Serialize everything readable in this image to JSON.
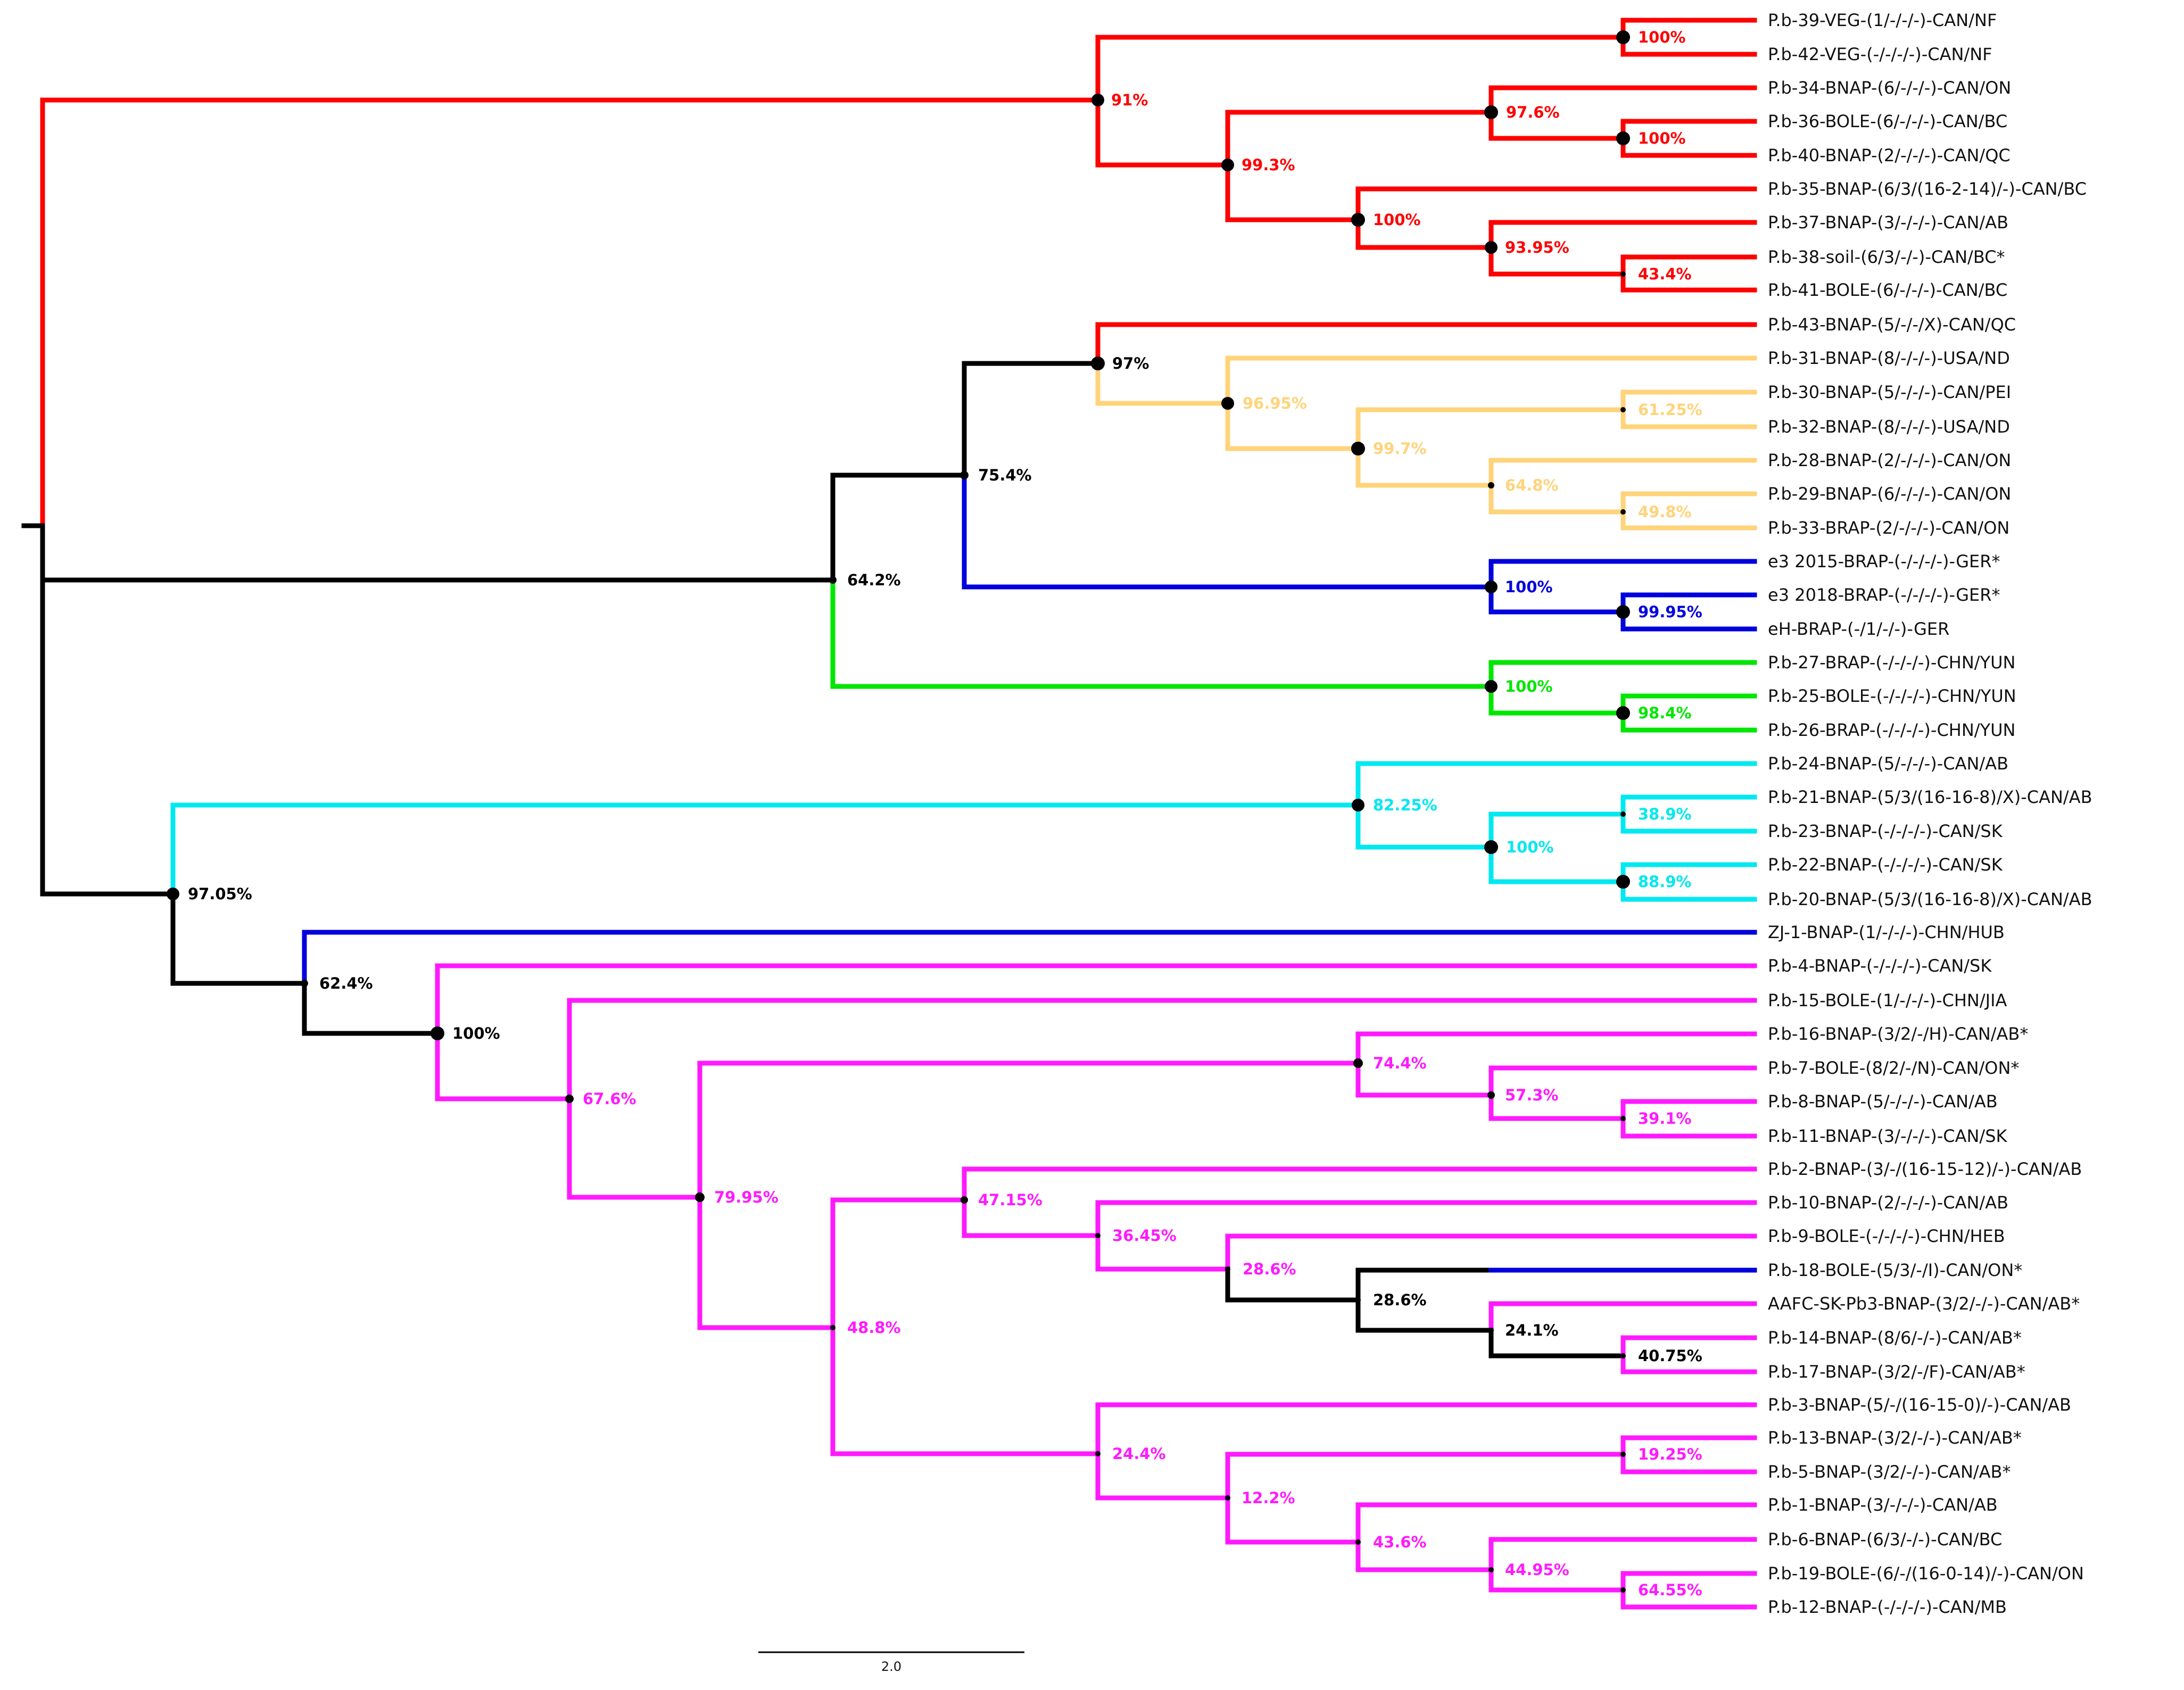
{
  "colors": {
    "red": "#ff0000",
    "black": "#000000",
    "yellow": "#ffd37a",
    "blue": "#0000dd",
    "green": "#00e600",
    "cyan": "#00e8f0",
    "magenta": "#ff1aff"
  },
  "leaves": [
    "P.b-39-VEG-(1/-/-/-)-CAN/NF",
    "P.b-42-VEG-(-/-/-/-)-CAN/NF",
    "P.b-34-BNAP-(6/-/-/-)-CAN/ON",
    "P.b-36-BOLE-(6/-/-/-)-CAN/BC",
    "P.b-40-BNAP-(2/-/-/-)-CAN/QC",
    "P.b-35-BNAP-(6/3/(16-2-14)/-)-CAN/BC",
    "P.b-37-BNAP-(3/-/-/-)-CAN/AB",
    "P.b-38-soil-(6/3/-/-)-CAN/BC*",
    "P.b-41-BOLE-(6/-/-/-)-CAN/BC",
    "P.b-43-BNAP-(5/-/-/X)-CAN/QC",
    "P.b-31-BNAP-(8/-/-/-)-USA/ND",
    "P.b-30-BNAP-(5/-/-/-)-CAN/PEI",
    "P.b-32-BNAP-(8/-/-/-)-USA/ND",
    "P.b-28-BNAP-(2/-/-/-)-CAN/ON",
    "P.b-29-BNAP-(6/-/-/-)-CAN/ON",
    "P.b-33-BRAP-(2/-/-/-)-CAN/ON",
    "e3 2015-BRAP-(-/-/-/-)-GER*",
    "e3 2018-BRAP-(-/-/-/-)-GER*",
    "eH-BRAP-(-/1/-/-)-GER",
    "P.b-27-BRAP-(-/-/-/-)-CHN/YUN",
    "P.b-25-BOLE-(-/-/-/-)-CHN/YUN",
    "P.b-26-BRAP-(-/-/-/-)-CHN/YUN",
    "P.b-24-BNAP-(5/-/-/-)-CAN/AB",
    "P.b-21-BNAP-(5/3/(16-16-8)/X)-CAN/AB",
    "P.b-23-BNAP-(-/-/-/-)-CAN/SK",
    "P.b-22-BNAP-(-/-/-/-)-CAN/SK",
    "P.b-20-BNAP-(5/3/(16-16-8)/X)-CAN/AB",
    "ZJ-1-BNAP-(1/-/-/-)-CHN/HUB",
    "P.b-4-BNAP-(-/-/-/-)-CAN/SK",
    "P.b-15-BOLE-(1/-/-/-)-CHN/JIA",
    "P.b-16-BNAP-(3/2/-/H)-CAN/AB*",
    "P.b-7-BOLE-(8/2/-/N)-CAN/ON*",
    "P.b-8-BNAP-(5/-/-/-)-CAN/AB",
    "P.b-11-BNAP-(3/-/-/-)-CAN/SK",
    "P.b-2-BNAP-(3/-/(16-15-12)/-)-CAN/AB",
    "P.b-10-BNAP-(2/-/-/-)-CAN/AB",
    "P.b-9-BOLE-(-/-/-/-)-CHN/HEB",
    "P.b-18-BOLE-(5/3/-/I)-CAN/ON*",
    "AAFC-SK-Pb3-BNAP-(3/2/-/-)-CAN/AB*",
    "P.b-14-BNAP-(8/6/-/-)-CAN/AB*",
    "P.b-17-BNAP-(3/2/-/F)-CAN/AB*",
    "P.b-3-BNAP-(5/-/(16-15-0)/-)-CAN/AB",
    "P.b-13-BNAP-(3/2/-/-)-CAN/AB*",
    "P.b-5-BNAP-(3/2/-/-)-CAN/AB*",
    "P.b-1-BNAP-(3/-/-/-)-CAN/AB",
    "P.b-6-BNAP-(6/3/-/-)-CAN/BC",
    "P.b-19-BOLE-(6/-/(16-0-14)/-)-CAN/ON",
    "P.b-12-BNAP-(-/-/-/-)-CAN/MB"
  ],
  "supports": [
    {
      "value": "100%",
      "color": "red"
    },
    {
      "value": "97.6%",
      "color": "red"
    },
    {
      "value": "100%",
      "color": "red"
    },
    {
      "value": "91%",
      "color": "red"
    },
    {
      "value": "99.3%",
      "color": "red"
    },
    {
      "value": "100%",
      "color": "red"
    },
    {
      "value": "93.95%",
      "color": "red"
    },
    {
      "value": "43.4%",
      "color": "red"
    },
    {
      "value": "97%",
      "color": "black"
    },
    {
      "value": "96.95%",
      "color": "yellow"
    },
    {
      "value": "61.25%",
      "color": "yellow"
    },
    {
      "value": "99.7%",
      "color": "yellow"
    },
    {
      "value": "64.8%",
      "color": "yellow"
    },
    {
      "value": "49.8%",
      "color": "yellow"
    },
    {
      "value": "75.4%",
      "color": "black"
    },
    {
      "value": "64.2%",
      "color": "black"
    },
    {
      "value": "100%",
      "color": "blue"
    },
    {
      "value": "99.95%",
      "color": "blue"
    },
    {
      "value": "100%",
      "color": "green"
    },
    {
      "value": "98.4%",
      "color": "green"
    },
    {
      "value": "82.25%",
      "color": "cyan"
    },
    {
      "value": "100%",
      "color": "cyan"
    },
    {
      "value": "38.9%",
      "color": "cyan"
    },
    {
      "value": "88.9%",
      "color": "cyan"
    },
    {
      "value": "97.05%",
      "color": "black"
    },
    {
      "value": "62.4%",
      "color": "black"
    },
    {
      "value": "100%",
      "color": "black"
    },
    {
      "value": "67.6%",
      "color": "magenta"
    },
    {
      "value": "79.95%",
      "color": "magenta"
    },
    {
      "value": "74.4%",
      "color": "magenta"
    },
    {
      "value": "57.3%",
      "color": "magenta"
    },
    {
      "value": "39.1%",
      "color": "magenta"
    },
    {
      "value": "48.8%",
      "color": "magenta"
    },
    {
      "value": "47.15%",
      "color": "magenta"
    },
    {
      "value": "36.45%",
      "color": "magenta"
    },
    {
      "value": "28.6%",
      "color": "magenta"
    },
    {
      "value": "28.6%",
      "color": "black"
    },
    {
      "value": "24.1%",
      "color": "black"
    },
    {
      "value": "40.75%",
      "color": "black"
    },
    {
      "value": "24.4%",
      "color": "magenta"
    },
    {
      "value": "12.2%",
      "color": "magenta"
    },
    {
      "value": "19.25%",
      "color": "magenta"
    },
    {
      "value": "43.6%",
      "color": "magenta"
    },
    {
      "value": "44.95%",
      "color": "magenta"
    },
    {
      "value": "64.55%",
      "color": "magenta"
    }
  ],
  "scale_bar": {
    "label": "2.0"
  }
}
